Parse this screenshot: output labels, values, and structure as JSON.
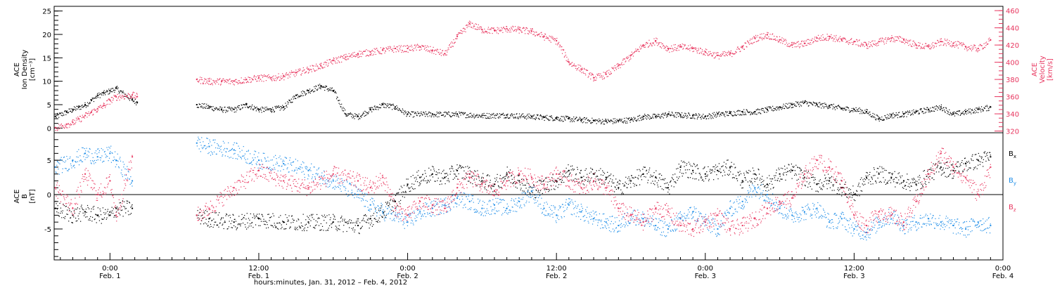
{
  "chart_data": {
    "type": "scatter",
    "xlabel": "hours:minutes, Jan. 31, 2012 – Feb. 4, 2012",
    "x_ticks": [
      {
        "hours": 0,
        "time": "0:00",
        "date": "Feb. 1"
      },
      {
        "hours": 12,
        "time": "12:00",
        "date": "Feb. 1"
      },
      {
        "hours": 24,
        "time": "0:00",
        "date": "Feb. 2"
      },
      {
        "hours": 36,
        "time": "12:00",
        "date": "Feb. 2"
      },
      {
        "hours": 48,
        "time": "0:00",
        "date": "Feb. 3"
      },
      {
        "hours": 60,
        "time": "12:00",
        "date": "Feb. 3"
      },
      {
        "hours": 72,
        "time": "0:00",
        "date": "Feb. 4"
      }
    ],
    "xlim": [
      -4.5,
      72
    ],
    "panels": [
      {
        "left_axis": {
          "label_lines": [
            "ACE",
            "Ion Density",
            "[cm⁻³]"
          ],
          "ylim": [
            -1,
            26
          ],
          "ticks": [
            "0",
            "5",
            "10",
            "15",
            "20",
            "25"
          ],
          "color": "#000000"
        },
        "right_axis": {
          "label_lines": [
            "ACE",
            "Velocity",
            "[km/s]"
          ],
          "ylim": [
            318,
            465
          ],
          "ticks": [
            "320",
            "340",
            "360",
            "380",
            "400",
            "420",
            "440",
            "460"
          ],
          "color": "#e8365f"
        },
        "series": [
          {
            "color": "#000000",
            "axis": "left",
            "x": [
              -4.4,
              -3.5,
              -3,
              -2.5,
              -2,
              -1.5,
              -1,
              -0.5,
              0,
              0.5,
              1.8,
              2.2,
              7,
              8,
              9,
              10,
              11,
              12,
              13,
              14,
              15,
              16,
              17,
              18,
              19,
              20,
              21,
              22,
              23,
              24,
              26,
              28,
              30,
              32,
              34,
              35,
              36,
              37,
              38,
              39,
              40,
              41,
              42,
              43,
              44,
              45,
              46,
              47,
              48,
              49,
              50,
              51,
              52,
              53,
              54,
              55,
              56,
              57,
              58,
              59,
              60,
              61,
              62,
              63,
              64,
              65,
              66,
              67,
              68,
              69,
              70,
              71
            ],
            "y": [
              2.5,
              3.5,
              4,
              4.5,
              5,
              6,
              7,
              7.5,
              8,
              8.5,
              6,
              5.5,
              5,
              4.5,
              4,
              4,
              5,
              4,
              4,
              4.5,
              7,
              8,
              9,
              8,
              3,
              2.5,
              4,
              5,
              4.5,
              3,
              3,
              3,
              2.7,
              2.8,
              2.5,
              2.3,
              2.2,
              2,
              1.8,
              1.6,
              1.5,
              1.6,
              1.8,
              2.5,
              2.5,
              3,
              2.8,
              2.7,
              2.5,
              3,
              3.2,
              3.5,
              3.5,
              4,
              4.5,
              5,
              5.5,
              5,
              4.8,
              4.2,
              4,
              3.5,
              2,
              2.8,
              3,
              3.5,
              4,
              4.5,
              3,
              3.5,
              4,
              4.5
            ]
          },
          {
            "color": "#e8365f",
            "axis": "right",
            "x": [
              -4.4,
              -3.5,
              -3,
              -2.5,
              -2,
              -1.5,
              -1,
              -0.5,
              0,
              0.5,
              1.8,
              2.2,
              7,
              8,
              9,
              10,
              11,
              12,
              13,
              14,
              15,
              16,
              17,
              18,
              19,
              20,
              21,
              22,
              23,
              24,
              25,
              26,
              27,
              28,
              29,
              30,
              31,
              32,
              33,
              34,
              35,
              36,
              37,
              38,
              39,
              40,
              41,
              42,
              43,
              44,
              45,
              46,
              47,
              48,
              49,
              50,
              51,
              52,
              53,
              54,
              55,
              56,
              57,
              58,
              59,
              60,
              61,
              62,
              63,
              64,
              65,
              66,
              67,
              68,
              69,
              70,
              71
            ],
            "y": [
              324,
              328,
              330,
              334,
              338,
              342,
              346,
              350,
              356,
              360,
              362,
              360,
              380,
              378,
              378,
              378,
              380,
              382,
              382,
              384,
              388,
              392,
              396,
              402,
              406,
              410,
              412,
              414,
              416,
              416,
              418,
              414,
              410,
              430,
              445,
              438,
              437,
              439,
              438,
              436,
              430,
              425,
              400,
              392,
              382,
              386,
              396,
              408,
              420,
              425,
              416,
              418,
              416,
              412,
              408,
              410,
              418,
              428,
              432,
              426,
              420,
              422,
              428,
              430,
              426,
              424,
              420,
              424,
              428,
              426,
              420,
              418,
              424,
              422,
              418,
              416,
              426
            ]
          }
        ]
      },
      {
        "left_axis": {
          "label_lines": [
            "ACE",
            "B",
            "[nT]"
          ],
          "ylim": [
            -9.5,
            9
          ],
          "ticks": [
            "-5",
            "0",
            "5"
          ],
          "color": "#000000"
        },
        "zero_line": true,
        "series": [
          {
            "name": "Bx",
            "color": "#000000",
            "axis": "left",
            "x": [
              -4.4,
              -3,
              -2,
              -1,
              0,
              0.5,
              1.8,
              7,
              8,
              10,
              12,
              14,
              16,
              18,
              20,
              21,
              22,
              23,
              24,
              25,
              26,
              27,
              28,
              29,
              30,
              31,
              32,
              33,
              34,
              35,
              36,
              37,
              38,
              39,
              40,
              41,
              42,
              43,
              44,
              45,
              46,
              47,
              48,
              49,
              50,
              51,
              52,
              53,
              54,
              55,
              56,
              57,
              58,
              59,
              60,
              61,
              62,
              63,
              64,
              65,
              66,
              67,
              68,
              69,
              70,
              71
            ],
            "y": [
              -2,
              -3,
              -2.5,
              -3,
              -3,
              -2,
              -2,
              -3,
              -3.5,
              -4,
              -3.5,
              -4,
              -4,
              -4,
              -4.5,
              -3.5,
              -2.5,
              -1,
              1.5,
              2.5,
              3,
              2.5,
              3.5,
              3,
              2,
              1.5,
              3,
              2,
              0.5,
              1.5,
              2,
              3.5,
              2.5,
              3,
              2.5,
              1,
              2,
              3,
              2.5,
              1,
              4,
              3.5,
              3,
              3.5,
              4,
              2,
              3,
              1.5,
              3,
              3.5,
              2.5,
              1.5,
              2,
              1,
              0,
              2.5,
              3,
              2.5,
              2,
              1.5,
              3,
              4,
              3.5,
              4.5,
              5,
              5.5
            ]
          },
          {
            "name": "By",
            "color": "#1f8ee8",
            "axis": "left",
            "x": [
              -4.4,
              -3,
              -2,
              -1,
              0,
              0.5,
              1.8,
              7,
              8,
              10,
              12,
              14,
              16,
              18,
              20,
              21,
              22,
              23,
              24,
              25,
              26,
              27,
              28,
              29,
              30,
              31,
              32,
              33,
              34,
              35,
              36,
              37,
              38,
              39,
              40,
              41,
              42,
              43,
              44,
              45,
              46,
              47,
              48,
              49,
              50,
              51,
              52,
              53,
              54,
              55,
              56,
              57,
              58,
              59,
              60,
              61,
              62,
              63,
              64,
              65,
              66,
              67,
              68,
              69,
              70,
              71
            ],
            "y": [
              4,
              5,
              6,
              5.5,
              6,
              5,
              2,
              7.5,
              7,
              6.5,
              5,
              4.5,
              3.5,
              2,
              0,
              -1.5,
              -2.5,
              -3,
              -4,
              -2.5,
              -2,
              -1.5,
              -0.5,
              -1,
              -2,
              -1.5,
              -2,
              -1,
              0.5,
              -2,
              -3,
              -1.5,
              -2.5,
              -3.5,
              -4,
              -4.5,
              -3,
              -3.5,
              -4.5,
              -5,
              -3.5,
              -2.5,
              -4,
              -5,
              -2,
              -1,
              1,
              0,
              -2,
              -3,
              -2.5,
              -2,
              -4,
              -3.5,
              -5,
              -5.5,
              -4,
              -3,
              -4.5,
              -4,
              -3.5,
              -4,
              -4.5,
              -5,
              -4,
              -4.5
            ]
          },
          {
            "name": "Bz",
            "color": "#e8365f",
            "axis": "left",
            "x": [
              -4.4,
              -3,
              -2,
              -1,
              0,
              0.5,
              1.8,
              7,
              8,
              10,
              12,
              14,
              16,
              18,
              20,
              21,
              22,
              23,
              24,
              25,
              26,
              27,
              28,
              29,
              30,
              31,
              32,
              33,
              34,
              35,
              36,
              37,
              38,
              39,
              40,
              41,
              42,
              43,
              44,
              45,
              46,
              47,
              48,
              49,
              50,
              51,
              52,
              53,
              54,
              55,
              56,
              57,
              58,
              59,
              60,
              61,
              62,
              63,
              64,
              65,
              66,
              67,
              68,
              69,
              70,
              71
            ],
            "y": [
              1,
              -2,
              3,
              0,
              2,
              -3,
              5.5,
              -3,
              -2,
              1,
              3.5,
              2,
              1,
              3,
              2,
              1,
              2.5,
              -2,
              -3,
              -1,
              -1.5,
              -2,
              1,
              2.5,
              1.5,
              0.5,
              2,
              3,
              2.5,
              1.5,
              3,
              2,
              1,
              2,
              1,
              -2,
              -3,
              -4,
              -2,
              -2.5,
              -4.5,
              -5,
              -4,
              -3,
              -5,
              -4.5,
              -3.5,
              -2,
              -1,
              -0.5,
              3,
              5,
              4,
              2,
              -3,
              -4.5,
              -2.5,
              -3,
              -4,
              -1,
              3,
              6,
              4,
              2.5,
              0,
              4
            ]
          }
        ]
      }
    ]
  }
}
